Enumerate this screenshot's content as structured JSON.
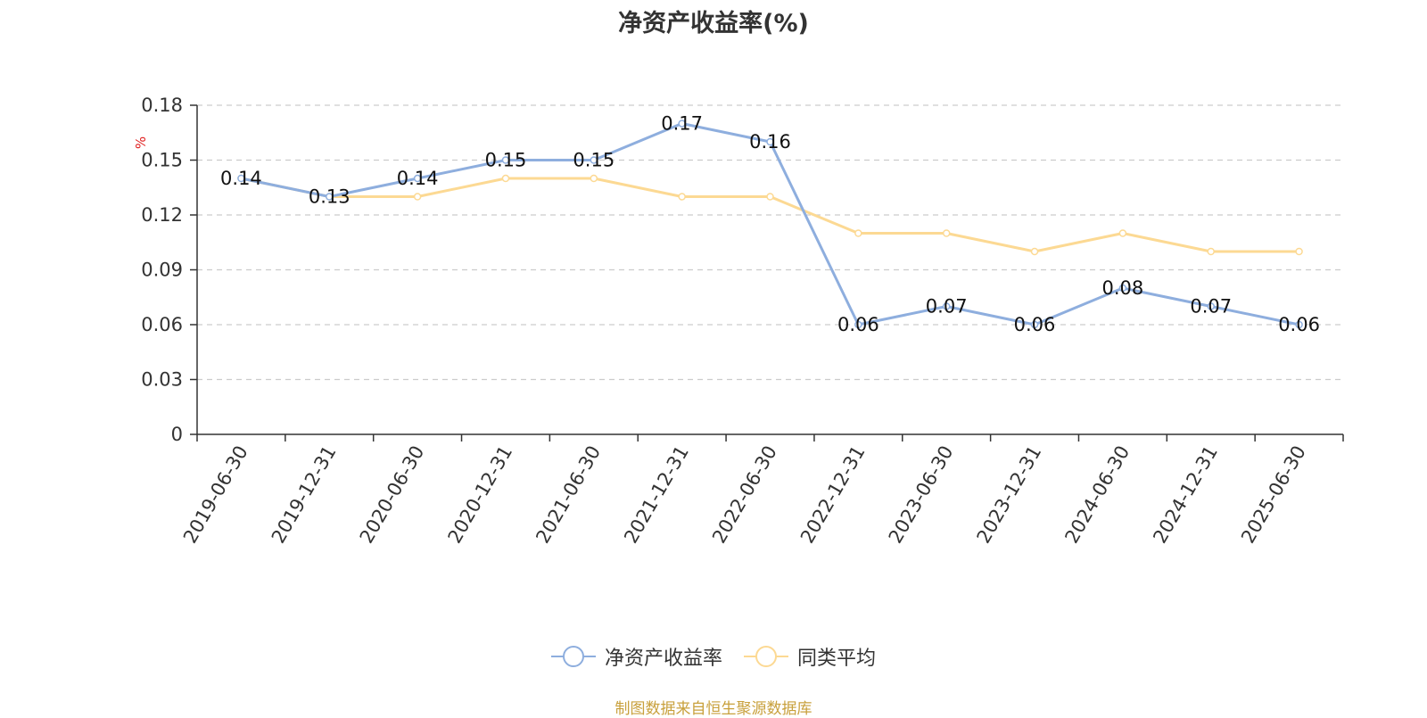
{
  "colors": {
    "series1": "#8eaede",
    "series2": "#fcd993",
    "axis": "#333333",
    "grid": "#cccccc",
    "yunit": "#e02020",
    "source": "#c8a03c"
  },
  "footer": {
    "source": "制图数据来自恒生聚源数据库"
  },
  "chart_data": {
    "type": "line",
    "title": "净资产收益率(%)",
    "xlabel": "",
    "ylabel": "%",
    "ylim": [
      0,
      0.18
    ],
    "yticks": [
      "0",
      "0.03",
      "0.06",
      "0.09",
      "0.12",
      "0.15",
      "0.18"
    ],
    "grid": true,
    "legend": "bottom",
    "categories": [
      "2019-06-30",
      "2019-12-31",
      "2020-06-30",
      "2020-12-31",
      "2021-06-30",
      "2021-12-31",
      "2022-06-30",
      "2022-12-31",
      "2023-06-30",
      "2023-12-31",
      "2024-06-30",
      "2024-12-31",
      "2025-06-30"
    ],
    "series": [
      {
        "name": "净资产收益率",
        "values": [
          0.14,
          0.13,
          0.14,
          0.15,
          0.15,
          0.17,
          0.16,
          0.06,
          0.07,
          0.06,
          0.08,
          0.07,
          0.06
        ],
        "labels": [
          "0.14",
          "0.13",
          "0.14",
          "0.15",
          "0.15",
          "0.17",
          "0.16",
          "0.06",
          "0.07",
          "0.06",
          "0.08",
          "0.07",
          "0.06"
        ]
      },
      {
        "name": "同类平均",
        "values": [
          0.14,
          0.13,
          0.13,
          0.14,
          0.14,
          0.13,
          0.13,
          0.11,
          0.11,
          0.1,
          0.11,
          0.1,
          0.1
        ]
      }
    ]
  }
}
